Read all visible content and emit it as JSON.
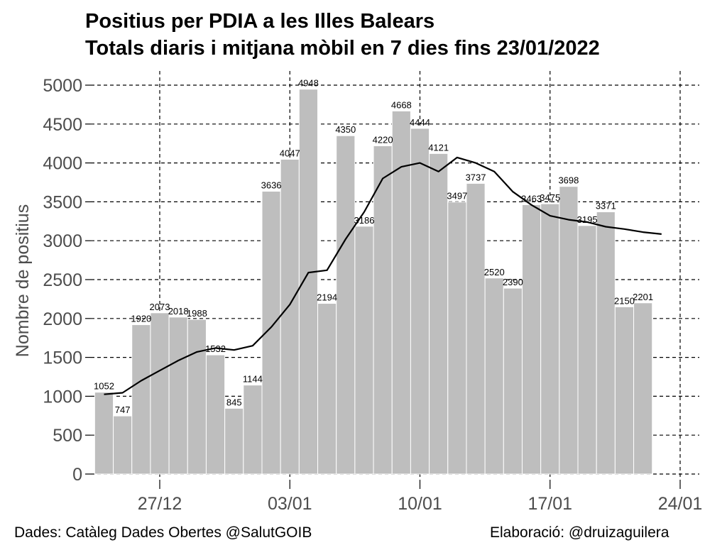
{
  "title_line_1": "Positius per PDIA a les Illes Balears",
  "title_line_2": "Totals diaris i mitjana mòbil en 7 dies fins 23/01/2022",
  "caption_left": "Dades: Catàleg Dades Obertes @SalutGOIB",
  "caption_right": "Elaboració: @druizaguilera",
  "colors": {
    "bar": "#bebebe",
    "bar_edge": "#ffffff",
    "line": "#000000",
    "grid": "#000000",
    "tick_label": "#4d4d4d"
  },
  "chart_data": {
    "type": "bar",
    "title": "Positius per PDIA a les Illes Balears",
    "subtitle": "Totals diaris i mitjana mòbil en 7 dies fins 23/01/2022",
    "xlabel": "",
    "ylabel": "Nombre de positius",
    "ylim": [
      0,
      5300
    ],
    "yticks": [
      0,
      500,
      1000,
      1500,
      2000,
      2500,
      3000,
      3500,
      4000,
      4500,
      5000
    ],
    "xticks": [
      "27/12",
      "03/01",
      "10/01",
      "17/01",
      "24/01"
    ],
    "xtick_dates": [
      "2021-12-27",
      "2022-01-03",
      "2022-01-10",
      "2022-01-17",
      "2022-01-24"
    ],
    "xlim": [
      "2021-12-23",
      "2022-01-24"
    ],
    "grid": true,
    "grid_style": "dashed",
    "categories": [
      "2021-12-24",
      "2021-12-25",
      "2021-12-26",
      "2021-12-27",
      "2021-12-28",
      "2021-12-29",
      "2021-12-30",
      "2021-12-31",
      "2022-01-01",
      "2022-01-02",
      "2022-01-03",
      "2022-01-04",
      "2022-01-05",
      "2022-01-06",
      "2022-01-07",
      "2022-01-08",
      "2022-01-09",
      "2022-01-10",
      "2022-01-11",
      "2022-01-12",
      "2022-01-13",
      "2022-01-14",
      "2022-01-15",
      "2022-01-16",
      "2022-01-17",
      "2022-01-18",
      "2022-01-19",
      "2022-01-20",
      "2022-01-21",
      "2022-01-22",
      "2022-01-23"
    ],
    "series": [
      {
        "type": "bar",
        "values": [
          1052,
          747,
          1920,
          2073,
          2018,
          1988,
          1532,
          845,
          1144,
          3636,
          4047,
          4948,
          2194,
          4350,
          3186,
          4220,
          4668,
          4444,
          4121,
          3497,
          3737,
          2520,
          2390,
          3463,
          3475,
          3698,
          3195,
          3371,
          2150,
          2201,
          null
        ],
        "labels": [
          "1052",
          "747",
          "1920",
          "2073",
          "2018",
          "1988",
          "1532",
          "845",
          "1144",
          "3636",
          "4047",
          "4948",
          "2194",
          "4350",
          "3186",
          "4220",
          "4668",
          "4444",
          "4121",
          "3497",
          "3737",
          "2520",
          "2390",
          "3463",
          "3475",
          "3698",
          "3195",
          "3371",
          "2150",
          "2201",
          ""
        ]
      },
      {
        "type": "line",
        "values": [
          1025,
          1045,
          1200,
          1330,
          1460,
          1570,
          1620,
          1595,
          1650,
          1890,
          2180,
          2590,
          2620,
          3020,
          3370,
          3800,
          3950,
          4000,
          3890,
          4070,
          4000,
          3890,
          3630,
          3460,
          3320,
          3270,
          3240,
          3180,
          3150,
          3110,
          3085
        ]
      }
    ]
  }
}
